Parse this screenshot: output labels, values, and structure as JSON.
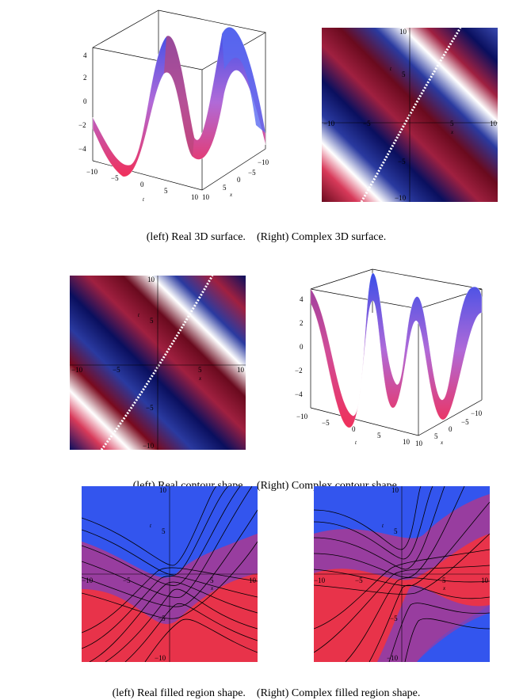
{
  "figures": {
    "fig1_left": {
      "kind": "3D surface",
      "ticks_vertical": [
        "4",
        "2",
        "0",
        "−2",
        "−4"
      ],
      "ticks_t": [
        "−10",
        "−5",
        "0",
        "5",
        "10"
      ],
      "ticks_x": [
        "−10",
        "−5",
        "0",
        "5",
        "10"
      ],
      "axis_t": "t",
      "axis_x": "x"
    },
    "fig1_right": {
      "kind": "contour",
      "ticks_x": [
        "−10",
        "−5",
        "5",
        "10"
      ],
      "ticks_y": [
        "10",
        "5",
        "−5",
        "−10"
      ],
      "axis_x": "x",
      "axis_y": "t"
    },
    "fig2_left": {
      "kind": "contour",
      "ticks_x": [
        "−10",
        "−5",
        "5",
        "10"
      ],
      "ticks_y": [
        "10",
        "5",
        "−5",
        "−10"
      ],
      "axis_x": "x",
      "axis_y": "t"
    },
    "fig2_right": {
      "kind": "3D surface",
      "ticks_vertical": [
        "4",
        "2",
        "0",
        "−2",
        "−4"
      ],
      "ticks_t": [
        "−10",
        "−5",
        "0",
        "5",
        "10"
      ],
      "ticks_x": [
        "−10",
        "−5",
        "0",
        "5",
        "10"
      ],
      "axis_t": "t",
      "axis_x": "x"
    },
    "fig3_left": {
      "kind": "filled region",
      "ticks_x": [
        "−10",
        "−5",
        "5",
        "10"
      ],
      "ticks_y": [
        "10",
        "5",
        "−5",
        "−10"
      ],
      "axis_x": "x",
      "axis_y": "t"
    },
    "fig3_right": {
      "kind": "filled region",
      "ticks_x": [
        "−10",
        "−5",
        "5",
        "10"
      ],
      "ticks_y": [
        "10",
        "5",
        "−5",
        "−10"
      ],
      "axis_x": "x",
      "axis_y": "t"
    }
  },
  "captions": {
    "row1_left": "(left) Real 3D surface.",
    "row1_right": "(Right) Complex 3D surface.",
    "row2_left": "(left) Real contour shape.",
    "row2_right": "(Right) Complex contour shape.",
    "row3_left": "(left) Real filled region shape.",
    "row3_right": "(Right) Complex filled region shape."
  },
  "colors": {
    "red": "#e8334a",
    "blue": "#3355ee",
    "dark_red": "#7a0a1e",
    "navy": "#0a1a6e",
    "purple": "#8a3fae"
  }
}
